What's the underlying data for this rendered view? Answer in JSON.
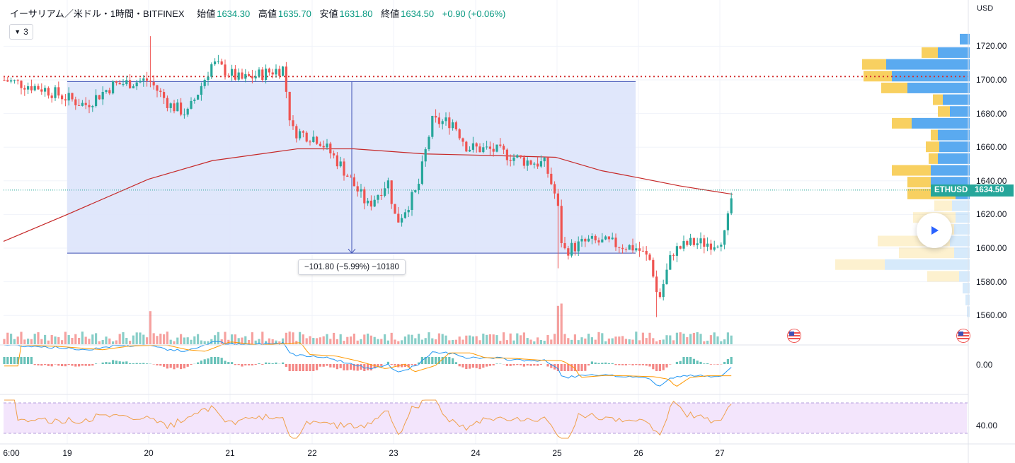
{
  "header": {
    "symbol": "イーサリアム／米ドル・1時間・BITFINEX",
    "open_label": "始値",
    "open": "1634.30",
    "high_label": "高値",
    "high": "1635.70",
    "low_label": "安値",
    "low": "1631.80",
    "close_label": "終値",
    "close": "1634.50",
    "change": "+0.90 (+0.06%)"
  },
  "indicator_button": {
    "count": "3",
    "icon": "chevron-down-icon"
  },
  "measure": {
    "label": "−101.80 (−5.99%) −10180"
  },
  "price_axis": {
    "unit": "USD",
    "ticks": [
      "1720.00",
      "1700.00",
      "1680.00",
      "1660.00",
      "1640.00",
      "1620.00",
      "1600.00",
      "1580.00",
      "1560.00"
    ],
    "macd_tick": "0.00",
    "rsi_tick": "40.00"
  },
  "time_axis": {
    "ticks": [
      "6:00",
      "19",
      "20",
      "21",
      "22",
      "23",
      "24",
      "25",
      "26",
      "27"
    ]
  },
  "last_price": {
    "symbol": "ETHUSD",
    "price": "1634.50"
  },
  "colors": {
    "up": "#26a69a",
    "down": "#ef5350",
    "ma": "#c62828",
    "measure_fill": "#dde4fb",
    "measure_line": "#3f51b5",
    "macd": "#2196f3",
    "signal": "#ff9800",
    "rsi": "#f0a04b",
    "rsi_band": "#f3e5fc",
    "vp_up": "#5aaaf0",
    "vp_down": "#f8d060"
  },
  "icons": {
    "play": "play-icon",
    "flag": "us-flag-icon"
  },
  "chart_data": {
    "type": "candlestick",
    "title": "イーサリアム／米ドル・1時間・BITFINEX",
    "x": [
      "19",
      "20",
      "21",
      "22",
      "23",
      "24",
      "25",
      "26",
      "27"
    ],
    "ylim": [
      1552,
      1728
    ],
    "horizontal_line": 1702,
    "measured_range": {
      "from": 1699,
      "to": 1597,
      "change": -101.8,
      "percent": -5.99
    },
    "last_close": 1634.5,
    "panes": [
      "price",
      "volume",
      "macd",
      "rsi"
    ],
    "grid": true
  }
}
